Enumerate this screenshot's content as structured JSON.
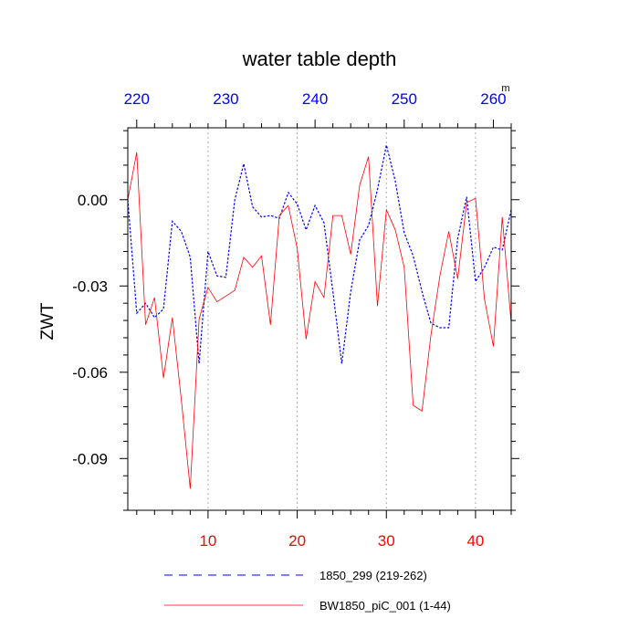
{
  "chart_data": {
    "type": "line",
    "title": "water table depth",
    "ylabel": "ZWT",
    "top_axis_unit": "m",
    "xlim": [
      1,
      44
    ],
    "ylim": [
      -0.108,
      0.025
    ],
    "top_xlim": [
      219,
      262
    ],
    "grid": "vertical dotted",
    "x_ticks": [
      10,
      20,
      30,
      40
    ],
    "x_tick_labels": [
      "10",
      "20",
      "30",
      "40"
    ],
    "x_tick_color": "#ff0000",
    "top_ticks": [
      220,
      230,
      240,
      250,
      260
    ],
    "top_tick_labels": [
      "220",
      "230",
      "240",
      "250",
      "260"
    ],
    "top_tick_color": "#0000ff",
    "y_ticks": [
      0.0,
      -0.03,
      -0.06,
      -0.09
    ],
    "y_tick_labels": [
      "0.00",
      "-0.03",
      "-0.06",
      "-0.09"
    ],
    "series": [
      {
        "name": "1850_299 (219-262)",
        "color": "#0000ff",
        "style": "dashed",
        "x": [
          1,
          2,
          3,
          4,
          5,
          6,
          7,
          8,
          9,
          10,
          11,
          12,
          13,
          14,
          15,
          16,
          17,
          18,
          19,
          20,
          21,
          22,
          23,
          24,
          25,
          26,
          27,
          28,
          29,
          30,
          31,
          32,
          33,
          34,
          35,
          36,
          37,
          38,
          39,
          40,
          41,
          42,
          43,
          44
        ],
        "values": [
          0.0,
          -0.0395,
          -0.036,
          -0.041,
          -0.038,
          -0.0075,
          -0.011,
          -0.02,
          -0.057,
          -0.018,
          -0.0265,
          -0.027,
          0.0,
          0.0125,
          -0.0025,
          -0.006,
          -0.0055,
          -0.0065,
          0.0025,
          -0.0015,
          -0.0105,
          -0.002,
          -0.008,
          -0.032,
          -0.057,
          -0.032,
          -0.014,
          -0.009,
          0.0035,
          0.019,
          0.0065,
          -0.0115,
          -0.0195,
          -0.032,
          -0.043,
          -0.0445,
          -0.0445,
          -0.0135,
          0.001,
          -0.0285,
          -0.0235,
          -0.0165,
          -0.0175,
          -0.0035
        ]
      },
      {
        "name": "BW1850_piC_001 (1-44)",
        "color": "#ff0000",
        "style": "solid",
        "x": [
          1,
          2,
          3,
          4,
          5,
          6,
          7,
          8,
          9,
          10,
          11,
          12,
          13,
          14,
          15,
          16,
          17,
          18,
          19,
          20,
          21,
          22,
          23,
          24,
          25,
          26,
          27,
          28,
          29,
          30,
          31,
          32,
          33,
          34,
          35,
          36,
          37,
          38,
          39,
          40,
          41,
          42,
          43,
          44
        ],
        "values": [
          0.0,
          0.0165,
          -0.0435,
          -0.034,
          -0.062,
          -0.041,
          -0.0695,
          -0.1005,
          -0.0415,
          -0.0305,
          -0.0355,
          -0.0335,
          -0.0315,
          -0.02,
          -0.0235,
          -0.0195,
          -0.0435,
          -0.0055,
          -0.002,
          -0.017,
          -0.0485,
          -0.0285,
          -0.034,
          -0.0055,
          -0.0055,
          -0.019,
          0.005,
          0.015,
          -0.037,
          -0.0035,
          -0.0105,
          -0.0235,
          -0.0715,
          -0.0735,
          -0.047,
          -0.0265,
          -0.011,
          -0.0275,
          -0.001,
          0.0005,
          -0.0345,
          -0.051,
          -0.006,
          -0.043
        ]
      }
    ]
  }
}
